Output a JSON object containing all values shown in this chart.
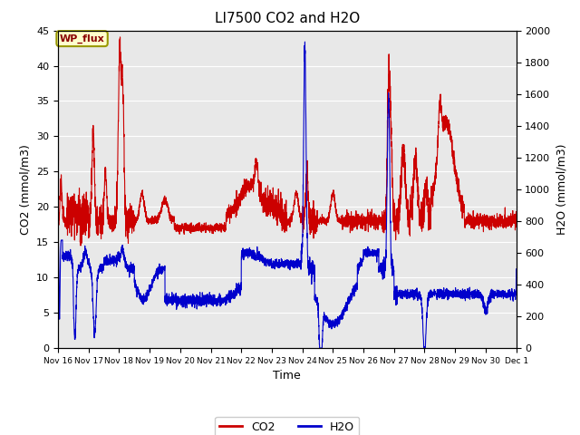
{
  "title": "LI7500 CO2 and H2O",
  "xlabel": "Time",
  "ylabel_left": "CO2 (mmol/m3)",
  "ylabel_right": "H2O (mmol/m3)",
  "ylim_left": [
    0,
    45
  ],
  "ylim_right": [
    0,
    2000
  ],
  "yticks_left": [
    0,
    5,
    10,
    15,
    20,
    25,
    30,
    35,
    40,
    45
  ],
  "yticks_right": [
    0,
    200,
    400,
    600,
    800,
    1000,
    1200,
    1400,
    1600,
    1800,
    2000
  ],
  "x_tick_positions": [
    16,
    17,
    18,
    19,
    20,
    21,
    22,
    23,
    24,
    25,
    26,
    27,
    28,
    29,
    30,
    31
  ],
  "x_tick_labels": [
    "Nov 16",
    "Nov 17",
    "Nov 18",
    "Nov 19",
    "Nov 20",
    "Nov 21",
    "Nov 22",
    "Nov 23",
    "Nov 24",
    "Nov 25",
    "Nov 26",
    "Nov 27",
    "Nov 28",
    "Nov 29",
    "Nov 30",
    "Dec 1"
  ],
  "co2_color": "#cc0000",
  "h2o_color": "#0000cc",
  "legend_label_co2": "CO2",
  "legend_label_h2o": "H2O",
  "annotation_text": "WP_flux",
  "background_color": "#ffffff",
  "plot_bg_color": "#e8e8e8",
  "grid_color": "#ffffff",
  "title_fontsize": 11,
  "axis_fontsize": 9,
  "tick_fontsize": 8,
  "legend_fontsize": 9,
  "line_width": 0.8,
  "xlim": [
    16,
    31
  ]
}
